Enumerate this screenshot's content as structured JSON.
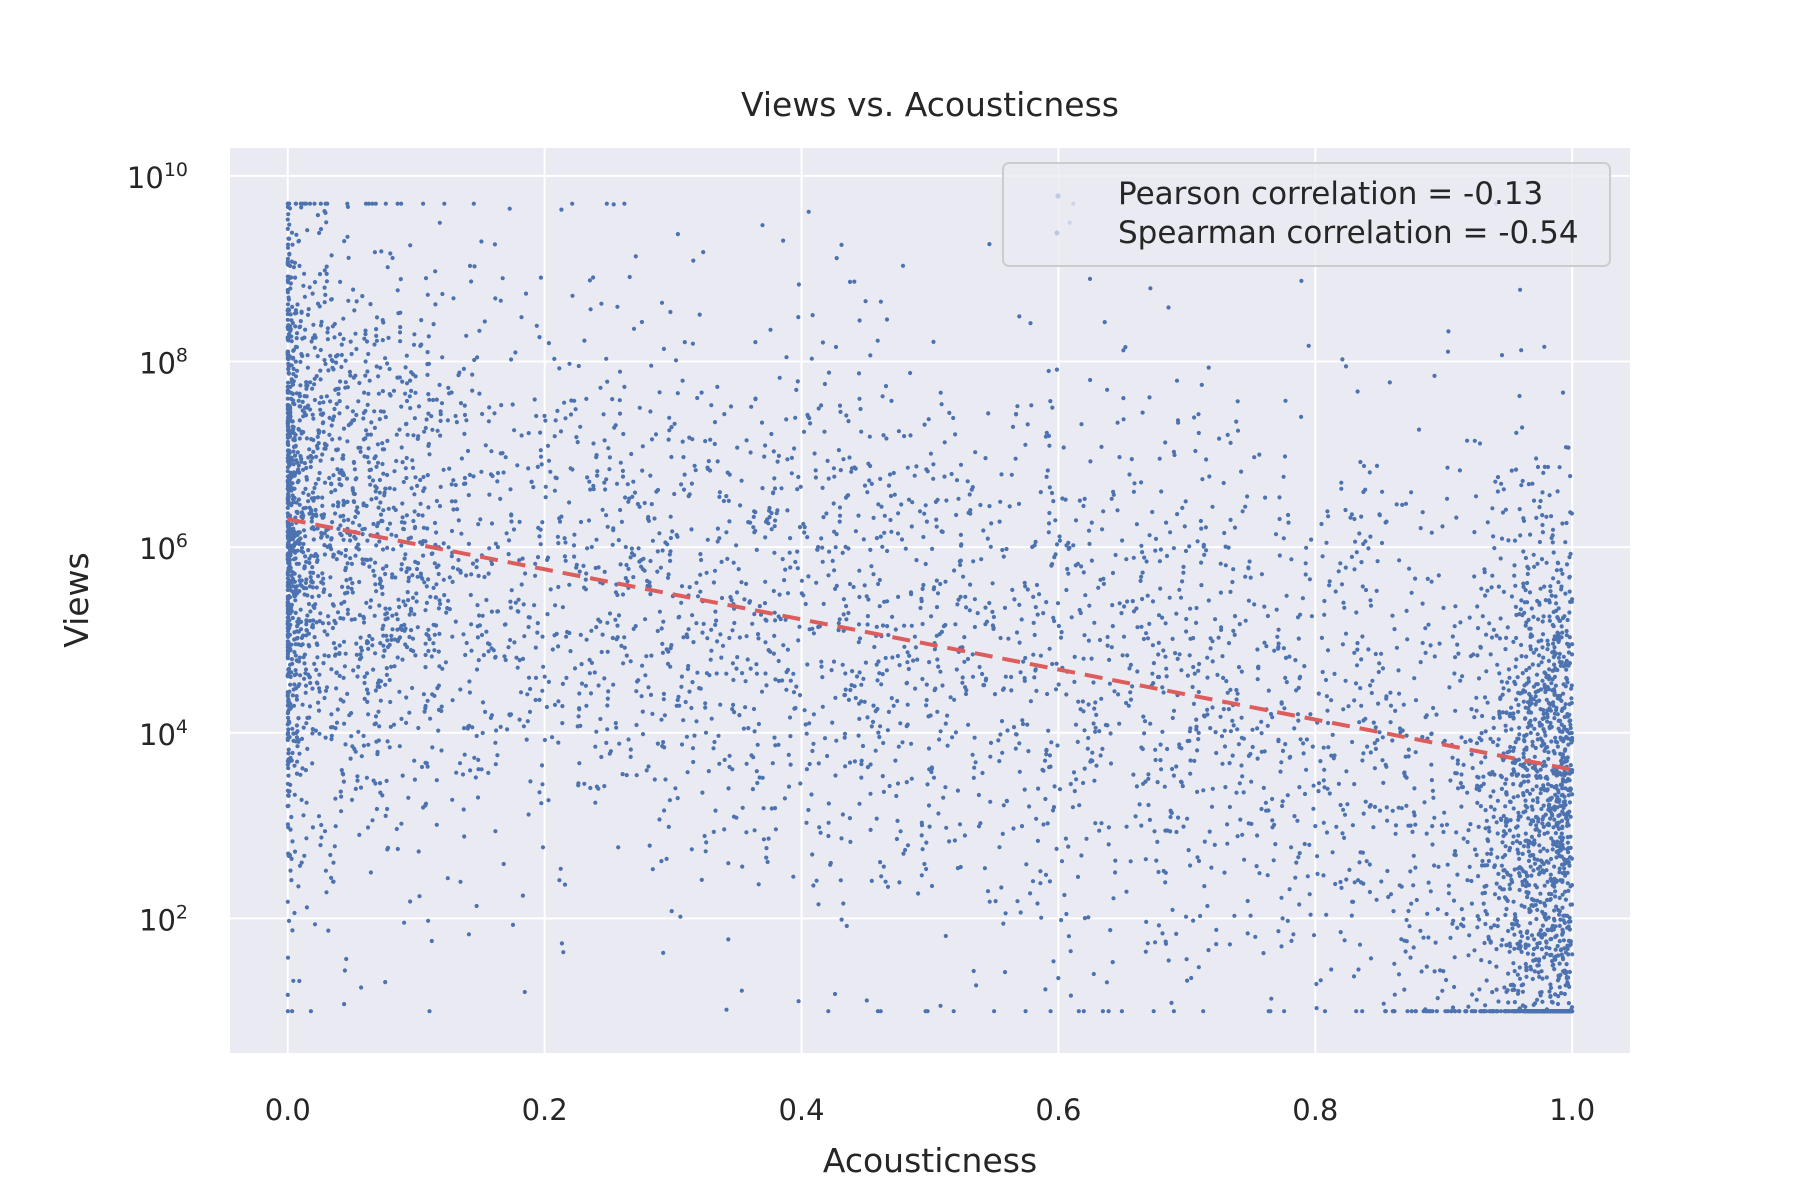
{
  "chart_data": {
    "type": "scatter",
    "title": "Views vs. Acousticness",
    "xlabel": "Acousticness",
    "ylabel": "Views",
    "xlim": [
      -0.045,
      1.045
    ],
    "ylim_log10": [
      0.55,
      10.3
    ],
    "y_scale": "log",
    "grid": true,
    "legend_position": "top-right",
    "x_ticks": [
      {
        "value": 0.0,
        "label": "0.0"
      },
      {
        "value": 0.2,
        "label": "0.2"
      },
      {
        "value": 0.4,
        "label": "0.4"
      },
      {
        "value": 0.6,
        "label": "0.6"
      },
      {
        "value": 0.8,
        "label": "0.8"
      },
      {
        "value": 1.0,
        "label": "1.0"
      }
    ],
    "y_ticks": [
      {
        "value": 100,
        "base": "10",
        "exp": "2"
      },
      {
        "value": 10000,
        "base": "10",
        "exp": "4"
      },
      {
        "value": 1000000,
        "base": "10",
        "exp": "6"
      },
      {
        "value": 100000000,
        "base": "10",
        "exp": "8"
      },
      {
        "value": 10000000000,
        "base": "10",
        "exp": "10"
      }
    ],
    "series": [
      {
        "kind": "scatter",
        "color": "#4c72b0",
        "point_count_shown": 6000,
        "x_range": [
          0.0,
          1.0
        ],
        "y_range": [
          10,
          5000000000
        ]
      },
      {
        "kind": "trend-line",
        "style": "dashed",
        "color": "#dd5c5c",
        "x": [
          0.0,
          1.0
        ],
        "y": [
          2000000,
          4000
        ]
      }
    ],
    "legend": {
      "entries": [
        {
          "label": "Pearson correlation = -0.13"
        },
        {
          "label": "Spearman correlation = -0.54"
        }
      ]
    },
    "colors": {
      "plot_background": "#eaeaf2",
      "grid": "#ffffff",
      "points": "#4c72b0",
      "trend": "#dd5c5c",
      "text": "#262626"
    }
  }
}
